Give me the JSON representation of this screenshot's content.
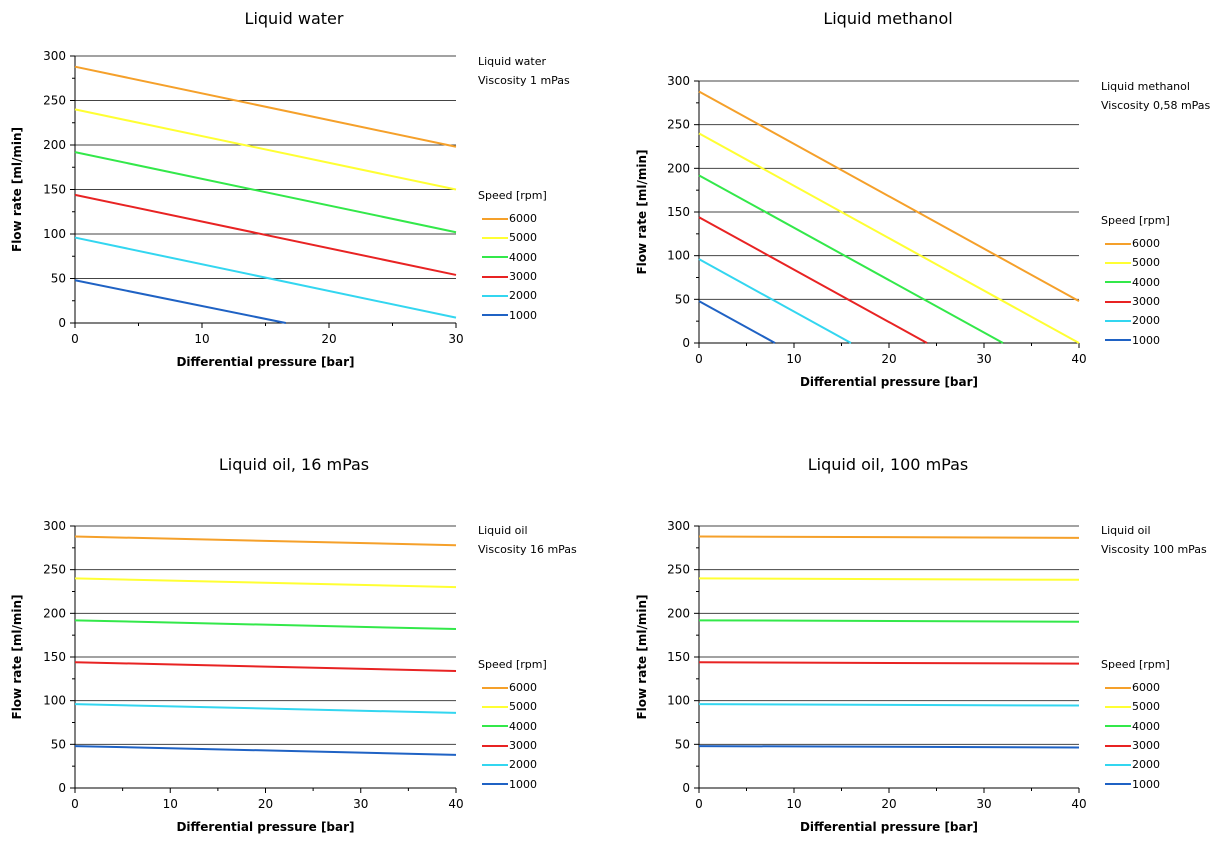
{
  "colors": {
    "6000": "#f5a02a",
    "5000": "#ffff33",
    "4000": "#33e84a",
    "3000": "#e82323",
    "2000": "#33d6f0",
    "1000": "#1f62c4",
    "gridline": "#444444"
  },
  "chart_data": [
    {
      "type": "line",
      "title": "Liquid water",
      "note_lines": [
        "Liquid water",
        "Viscosity 1 mPas"
      ],
      "xlabel": "Differential pressure [bar]",
      "ylabel": "Flow rate [ml/min]",
      "xlim": [
        0,
        30
      ],
      "ylim": [
        0,
        300
      ],
      "xticks": [
        0,
        10,
        20,
        30
      ],
      "yticks": [
        0,
        50,
        100,
        150,
        200,
        250,
        300
      ],
      "grid": "horizontal",
      "legend_title": "Speed [rpm]",
      "legend_placement": "right",
      "series": [
        {
          "name": "6000",
          "color_key": "6000",
          "x": [
            0,
            30
          ],
          "y": [
            288,
            198
          ]
        },
        {
          "name": "5000",
          "color_key": "5000",
          "x": [
            0,
            30
          ],
          "y": [
            240,
            150
          ]
        },
        {
          "name": "4000",
          "color_key": "4000",
          "x": [
            0,
            30
          ],
          "y": [
            192,
            102
          ]
        },
        {
          "name": "3000",
          "color_key": "3000",
          "x": [
            0,
            30
          ],
          "y": [
            144,
            54
          ]
        },
        {
          "name": "2000",
          "color_key": "2000",
          "x": [
            0,
            30
          ],
          "y": [
            96,
            6
          ]
        },
        {
          "name": "1000",
          "color_key": "1000",
          "x": [
            0,
            16.6
          ],
          "y": [
            48,
            0
          ]
        }
      ]
    },
    {
      "type": "line",
      "title": "Liquid methanol",
      "note_lines": [
        "Liquid methanol",
        "Viscosity 0,58 mPas"
      ],
      "xlabel": "Differential pressure [bar]",
      "ylabel": "Flow rate [ml/min]",
      "xlim": [
        0,
        40
      ],
      "ylim": [
        0,
        300
      ],
      "xticks": [
        0,
        10,
        20,
        30,
        40
      ],
      "yticks": [
        0,
        50,
        100,
        150,
        200,
        250,
        300
      ],
      "grid": "horizontal",
      "legend_title": "Speed [rpm]",
      "legend_placement": "right",
      "series": [
        {
          "name": "6000",
          "color_key": "6000",
          "x": [
            0,
            40
          ],
          "y": [
            288,
            48
          ]
        },
        {
          "name": "5000",
          "color_key": "5000",
          "x": [
            0,
            40
          ],
          "y": [
            240,
            0
          ]
        },
        {
          "name": "4000",
          "color_key": "4000",
          "x": [
            0,
            32
          ],
          "y": [
            192,
            0
          ]
        },
        {
          "name": "3000",
          "color_key": "3000",
          "x": [
            0,
            24
          ],
          "y": [
            144,
            0
          ]
        },
        {
          "name": "2000",
          "color_key": "2000",
          "x": [
            0,
            16
          ],
          "y": [
            96,
            0
          ]
        },
        {
          "name": "1000",
          "color_key": "1000",
          "x": [
            0,
            8
          ],
          "y": [
            48,
            0
          ]
        }
      ]
    },
    {
      "type": "line",
      "title": "Liquid oil, 16 mPas",
      "note_lines": [
        "Liquid oil",
        "Viscosity 16 mPas"
      ],
      "xlabel": "Differential pressure [bar]",
      "ylabel": "Flow rate [ml/min]",
      "xlim": [
        0,
        40
      ],
      "ylim": [
        0,
        300
      ],
      "xticks": [
        0,
        10,
        20,
        30,
        40
      ],
      "yticks": [
        0,
        50,
        100,
        150,
        200,
        250,
        300
      ],
      "grid": "horizontal",
      "legend_title": "Speed [rpm]",
      "legend_placement": "right",
      "series": [
        {
          "name": "6000",
          "color_key": "6000",
          "x": [
            0,
            40
          ],
          "y": [
            288,
            278
          ]
        },
        {
          "name": "5000",
          "color_key": "5000",
          "x": [
            0,
            40
          ],
          "y": [
            240,
            230
          ]
        },
        {
          "name": "4000",
          "color_key": "4000",
          "x": [
            0,
            40
          ],
          "y": [
            192,
            182
          ]
        },
        {
          "name": "3000",
          "color_key": "3000",
          "x": [
            0,
            40
          ],
          "y": [
            144,
            134
          ]
        },
        {
          "name": "2000",
          "color_key": "2000",
          "x": [
            0,
            40
          ],
          "y": [
            96,
            86
          ]
        },
        {
          "name": "1000",
          "color_key": "1000",
          "x": [
            0,
            40
          ],
          "y": [
            48,
            38
          ]
        }
      ]
    },
    {
      "type": "line",
      "title": "Liquid oil, 100 mPas",
      "note_lines": [
        "Liquid oil",
        "Viscosity 100 mPas"
      ],
      "xlabel": "Differential pressure [bar]",
      "ylabel": "Flow rate [ml/min]",
      "xlim": [
        0,
        40
      ],
      "ylim": [
        0,
        300
      ],
      "xticks": [
        0,
        10,
        20,
        30,
        40
      ],
      "yticks": [
        0,
        50,
        100,
        150,
        200,
        250,
        300
      ],
      "grid": "horizontal",
      "legend_title": "Speed [rpm]",
      "legend_placement": "right",
      "series": [
        {
          "name": "6000",
          "color_key": "6000",
          "x": [
            0,
            40
          ],
          "y": [
            288,
            286.4
          ]
        },
        {
          "name": "5000",
          "color_key": "5000",
          "x": [
            0,
            40
          ],
          "y": [
            240,
            238.4
          ]
        },
        {
          "name": "4000",
          "color_key": "4000",
          "x": [
            0,
            40
          ],
          "y": [
            192,
            190.4
          ]
        },
        {
          "name": "3000",
          "color_key": "3000",
          "x": [
            0,
            40
          ],
          "y": [
            144,
            142.4
          ]
        },
        {
          "name": "2000",
          "color_key": "2000",
          "x": [
            0,
            40
          ],
          "y": [
            96,
            94.4
          ]
        },
        {
          "name": "1000",
          "color_key": "1000",
          "x": [
            0,
            40
          ],
          "y": [
            48,
            46.4
          ]
        }
      ]
    }
  ]
}
